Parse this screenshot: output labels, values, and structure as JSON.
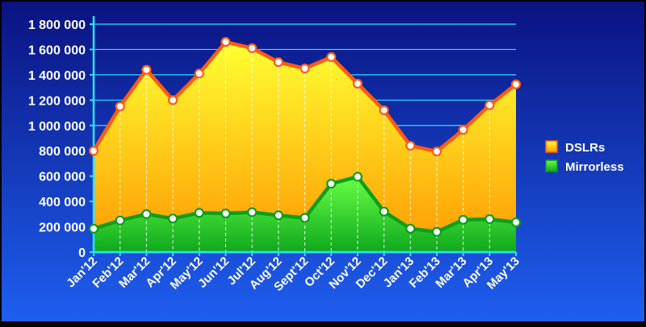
{
  "chart_data": {
    "type": "area",
    "categories": [
      "Jan'12",
      "Feb'12",
      "Mar'12",
      "Apr'12",
      "May'12",
      "Jun'12",
      "Jul'12",
      "Aug'12",
      "Sept'12",
      "Oct'12",
      "Nov'12",
      "Dec'12",
      "Jan'13",
      "Feb'13",
      "Mar'13",
      "Apr'13",
      "May'13"
    ],
    "series": [
      {
        "name": "DSLRs",
        "values": [
          800000,
          1150000,
          1440000,
          1200000,
          1410000,
          1660000,
          1610000,
          1500000,
          1450000,
          1540000,
          1330000,
          1120000,
          840000,
          795000,
          965000,
          1160000,
          1325000
        ]
      },
      {
        "name": "Mirrorless",
        "values": [
          185000,
          250000,
          300000,
          265000,
          310000,
          305000,
          315000,
          290000,
          270000,
          540000,
          595000,
          320000,
          185000,
          160000,
          255000,
          260000,
          235000
        ]
      }
    ],
    "yticks": [
      "0",
      "200 000",
      "400 000",
      "600 000",
      "800 000",
      "1 000 000",
      "1 200 000",
      "1 400 000",
      "1 600 000",
      "1 800 000"
    ],
    "ylim": [
      0,
      1800000
    ],
    "grid": true,
    "legend": "right",
    "colors": {
      "background_top": "#0a1280",
      "background_bottom": "#1e5ff0",
      "dslr_fill_top": "#ffff33",
      "dslr_fill_bottom": "#ff9900",
      "dslr_line": "#ff5a14",
      "mirrorless_fill_top": "#66ff44",
      "mirrorless_fill_bottom": "#0fa81e",
      "mirrorless_line": "#0d9e1a",
      "axis": "#27e6ff",
      "text": "#ffffff"
    }
  }
}
